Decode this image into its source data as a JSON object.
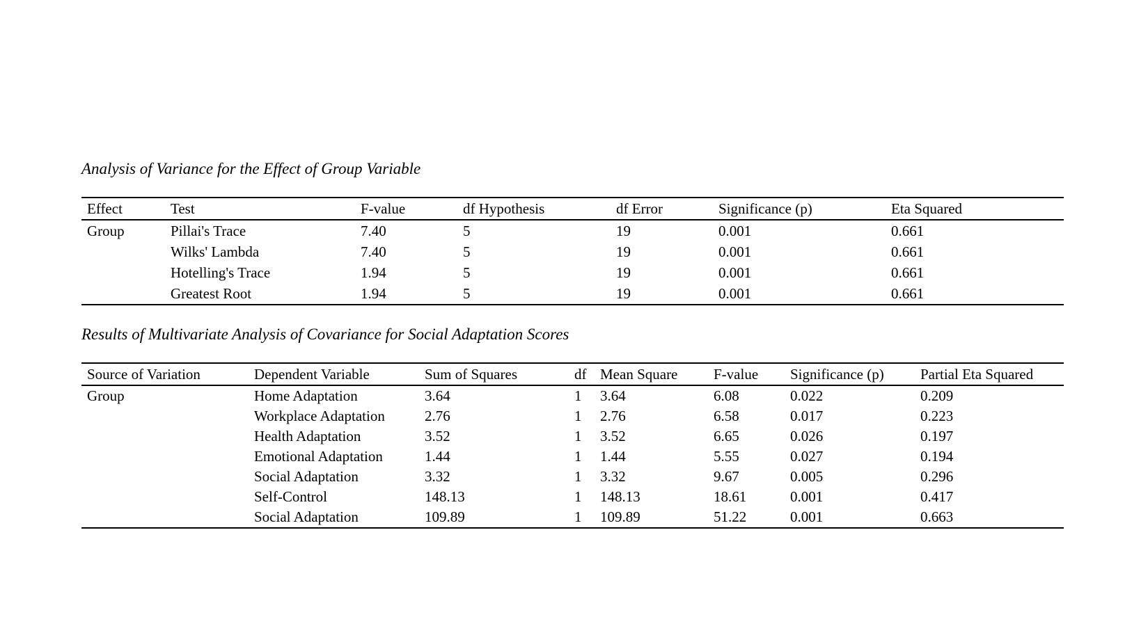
{
  "page": {
    "background_color": "#ffffff",
    "text_color": "#000000"
  },
  "tables": [
    {
      "title": "Analysis of Variance for the Effect of Group Variable",
      "columns": [
        {
          "label": "Effect"
        },
        {
          "label": "Test"
        },
        {
          "label": "F-value"
        },
        {
          "label": "df Hypothesis"
        },
        {
          "label": "df Error"
        },
        {
          "label": "Significance (p)"
        },
        {
          "label": "Eta Squared"
        }
      ],
      "rows": [
        [
          "Group",
          "Pillai's Trace",
          "7.40",
          "5",
          "19",
          "0.001",
          "0.661"
        ],
        [
          "",
          "Wilks' Lambda",
          "7.40",
          "5",
          "19",
          "0.001",
          "0.661"
        ],
        [
          "",
          "Hotelling's Trace",
          "1.94",
          "5",
          "19",
          "0.001",
          "0.661"
        ],
        [
          "",
          "Greatest Root",
          "1.94",
          "5",
          "19",
          "0.001",
          "0.661"
        ]
      ]
    },
    {
      "title": "Results of Multivariate Analysis of Covariance for Social Adaptation Scores",
      "columns": [
        {
          "label": "Source of Variation"
        },
        {
          "label": "Dependent Variable"
        },
        {
          "label": "Sum of Squares"
        },
        {
          "label": "df"
        },
        {
          "label": "Mean Square"
        },
        {
          "label": "F-value"
        },
        {
          "label": "Significance (p)"
        },
        {
          "label": "Partial Eta Squared"
        }
      ],
      "rows": [
        [
          "Group",
          "Home Adaptation",
          "3.64",
          "1",
          "3.64",
          "6.08",
          "0.022",
          "0.209"
        ],
        [
          "",
          "Workplace Adaptation",
          "2.76",
          "1",
          "2.76",
          "6.58",
          "0.017",
          "0.223"
        ],
        [
          "",
          "Health Adaptation",
          "3.52",
          "1",
          "3.52",
          "6.65",
          "0.026",
          "0.197"
        ],
        [
          "",
          "Emotional Adaptation",
          "1.44",
          "1",
          "1.44",
          "5.55",
          "0.027",
          "0.194"
        ],
        [
          "",
          "Social Adaptation",
          "3.32",
          "1",
          "3.32",
          "9.67",
          "0.005",
          "0.296"
        ],
        [
          "",
          "Self-Control",
          "148.13",
          "1",
          "148.13",
          "18.61",
          "0.001",
          "0.417"
        ],
        [
          "",
          "Social Adaptation",
          "109.89",
          "1",
          "109.89",
          "51.22",
          "0.001",
          "0.663"
        ]
      ]
    }
  ]
}
